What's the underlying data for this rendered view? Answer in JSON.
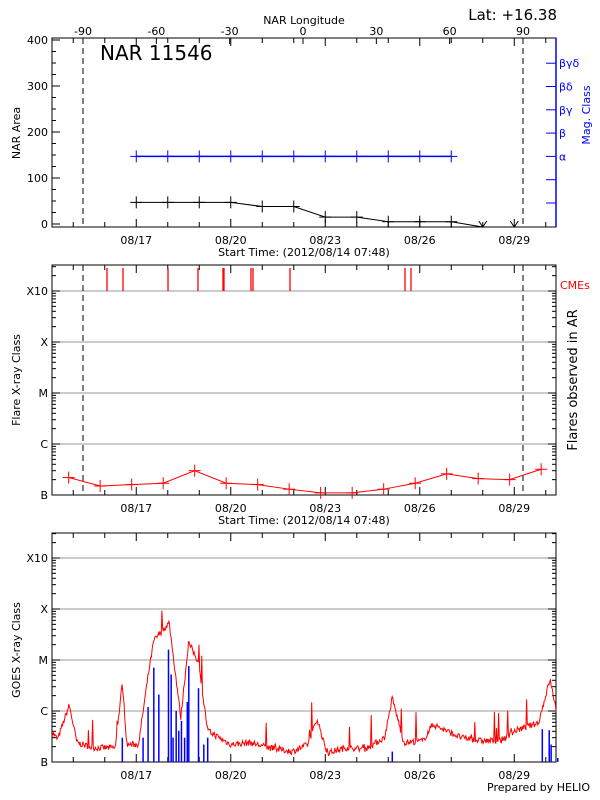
{
  "header": {
    "lat_label": "Lat: +16.38",
    "region_title": "NAR 11546"
  },
  "footer": {
    "credit": "Prepared by HELIO"
  },
  "colors": {
    "area": "#000000",
    "mag_class": "#0000ff",
    "flares": "#ff0000",
    "cmes": "#ff0000",
    "goes_long": "#ff0000",
    "goes_short": "#0000ff",
    "grid": "#999999"
  },
  "chart_data": [
    {
      "type": "line",
      "title": "NAR 11546",
      "top_axis_label": "NAR Longitude",
      "top_ticks": [
        "-90",
        "-60",
        "-30",
        "0",
        "30",
        "60",
        "90"
      ],
      "limb_markers_longitude": [
        -90,
        90
      ],
      "ylabel": "NAR Area",
      "ylim": [
        0,
        400
      ],
      "yticks": [
        "0",
        "100",
        "200",
        "300",
        "400"
      ],
      "right_axis_label": "Mag. Class",
      "right_ticks": [
        "α",
        "β",
        "βγ",
        "βδ",
        "βγδ"
      ],
      "xlabel": "Start Time: (2012/08/14 07:48)",
      "xticks": [
        "08/17",
        "08/20",
        "08/23",
        "08/26",
        "08/29"
      ],
      "x": [
        "08/17 00:00",
        "08/18 00:00",
        "08/19 00:00",
        "08/20 00:00",
        "08/21 00:00",
        "08/22 00:00",
        "08/23 00:00",
        "08/24 00:00",
        "08/25 00:00",
        "08/26 00:00",
        "08/27 00:00",
        "08/28 00:00",
        "08/29 00:00"
      ],
      "series": [
        {
          "key": "area",
          "values": [
            47,
            47,
            47,
            47,
            38,
            38,
            15,
            15,
            5,
            5,
            5,
            null,
            null
          ]
        },
        {
          "key": "mag_class",
          "values": [
            "α",
            "α",
            "α",
            "α",
            "α",
            "α",
            "α",
            "α",
            "α",
            "α",
            "α",
            null,
            null
          ]
        }
      ]
    },
    {
      "type": "line",
      "ylabel": "Flare X-ray Class",
      "right_axis_label": "Flares observed in AR",
      "yticks": [
        "B",
        "C",
        "M",
        "X",
        "X10"
      ],
      "xlabel": "Start Time: (2012/08/14 07:48)",
      "xticks": [
        "08/17",
        "08/20",
        "08/23",
        "08/26",
        "08/29"
      ],
      "cme_label": "CMEs",
      "cmes": [
        "08/16 01:42",
        "08/16 13:54",
        "08/18 00:11",
        "08/18 23:02",
        "08/19 18:05",
        "08/19 18:50",
        "08/20 15:24",
        "08/20 16:56",
        "08/21 21:08",
        "08/25 12:45",
        "08/25 17:19"
      ],
      "flares": {
        "x": [
          "08/14 20:30",
          "08/15 20:30",
          "08/16 20:30",
          "08/17 20:30",
          "08/18 20:30",
          "08/19 20:30",
          "08/20 20:30",
          "08/21 20:30",
          "08/22 20:30",
          "08/23 20:30",
          "08/24 20:30",
          "08/25 20:30",
          "08/26 20:30",
          "08/27 20:30",
          "08/28 20:30",
          "08/29 20:30"
        ],
        "values": [
          "B2.2",
          "B1.5",
          "B1.6",
          "B1.7",
          "B3.0",
          "B1.7",
          "B1.6",
          "B1.3",
          "B1.1",
          "B1.1",
          "B1.3",
          "B1.7",
          "B2.6",
          "B2.1",
          "B2.0",
          "B3.2"
        ]
      }
    },
    {
      "type": "line",
      "ylabel": "GOES X-ray Class",
      "yticks": [
        "B",
        "C",
        "M",
        "X",
        "X10"
      ],
      "xticks": [
        "08/17",
        "08/20",
        "08/23",
        "08/26",
        "08/29"
      ],
      "goes_long": {
        "x": [
          "08/14 07:48",
          "08/14 12:09",
          "08/14 20:56",
          "08/15 02:47",
          "08/15 14:30",
          "08/16 08:05",
          "08/16 13:22",
          "08/16 16:52",
          "08/17 01:42",
          "08/17 09:01",
          "08/17 13:22",
          "08/18 01:06",
          "08/18 09:56",
          "08/18 15:48",
          "08/18 23:07",
          "08/19 06:26",
          "08/20 00:01",
          "08/20 14:40",
          "08/21 05:18",
          "08/21 22:54",
          "08/22 10:36",
          "08/22 17:55",
          "08/23 01:15",
          "08/23 15:56",
          "08/24 06:35",
          "08/24 21:13",
          "08/25 03:04",
          "08/25 11:50",
          "08/26 02:33",
          "08/26 09:52",
          "08/26 20:08",
          "08/27 07:48",
          "08/27 22:29",
          "08/28 13:07",
          "08/29 00:52",
          "08/29 18:27",
          "08/30 03:14",
          "08/30 09:06"
        ],
        "values": [
          "B3.8",
          "B2.8",
          "C1.3",
          "B2.4",
          "B1.9",
          "B1.9",
          "C3.6",
          "B2.2",
          "B2.2",
          "C4.9",
          "M2.4",
          "M5.4",
          "B7.4",
          "M2.2",
          "C9.5",
          "B4.1",
          "B2.2",
          "B2.4",
          "B1.9",
          "B1.6",
          "B2.2",
          "B6.9",
          "B1.5",
          "B1.9",
          "B1.8",
          "B3.0",
          "C1.8",
          "B2.4",
          "B2.6",
          "B5.5",
          "B4.1",
          "B3.0",
          "B2.6",
          "B2.6",
          "B4.1",
          "B5.9",
          "C4.2",
          "B7.4"
        ]
      },
      "goes_short": {
        "x": [
          "08/16 13:22",
          "08/17 05:12",
          "08/17 09:01",
          "08/17 13:22",
          "08/17 17:11",
          "08/18 00:33",
          "08/18 02:36",
          "08/18 04:03",
          "08/18 06:24",
          "08/18 08:24",
          "08/18 10:26",
          "08/18 12:50",
          "08/18 14:53",
          "08/18 16:02",
          "08/18 23:25",
          "08/19 03:27",
          "08/19 06:26",
          "08/25 03:04",
          "08/29 21:22",
          "08/30 02:38",
          "08/30 04:05",
          "08/30 09:06"
        ],
        "values": [
          "B3.0",
          "B3.0",
          "C1.2",
          "C7.1",
          "C2.1",
          "M1.6",
          "C5.2",
          "B3.0",
          "C1.0",
          "B4.1",
          "B6.4",
          "B3.0",
          "C1.5",
          "C7.6",
          "C2.8",
          "B2.2",
          "B3.0",
          "B1.6",
          "B4.4",
          "B4.2",
          "B2.2",
          "B1.2"
        ]
      }
    }
  ]
}
